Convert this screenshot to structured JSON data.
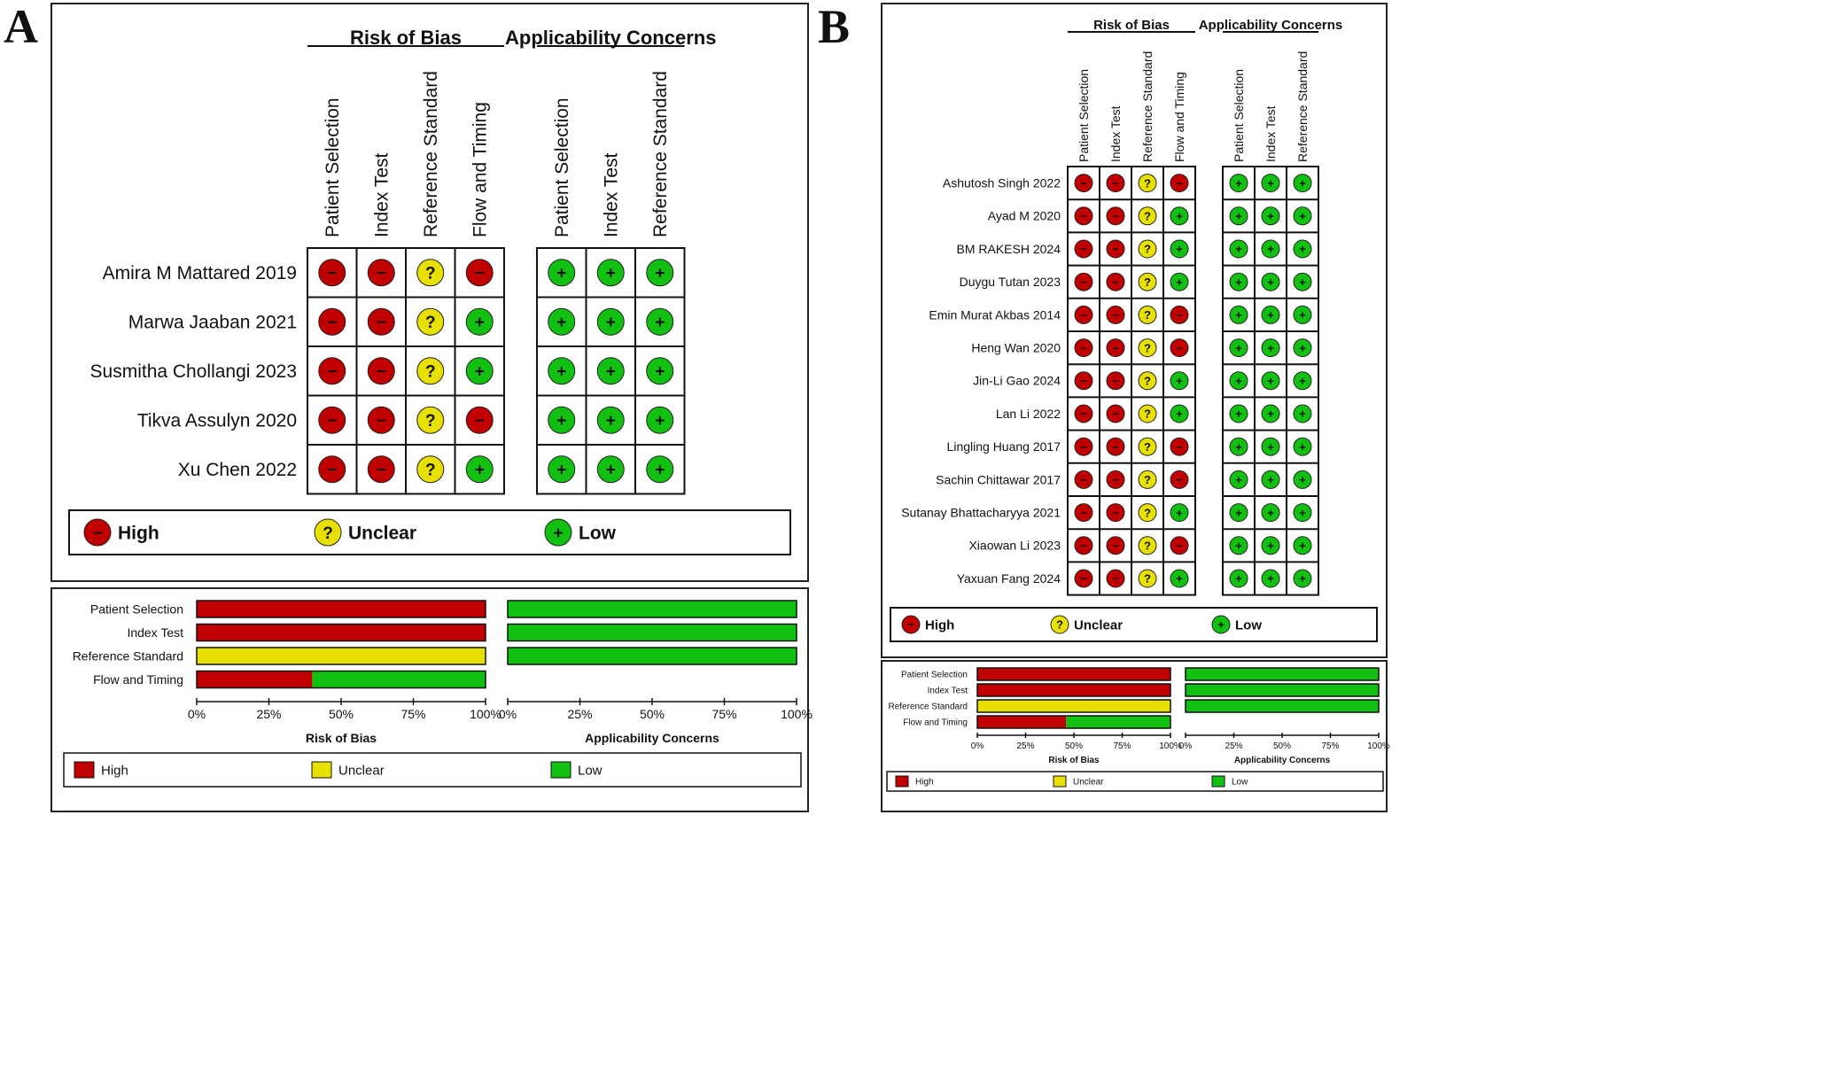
{
  "panel_labels": [
    "A",
    "B"
  ],
  "symbols": {
    "high": "−",
    "unclear": "?",
    "low": "+"
  },
  "colors": {
    "high": "#c00000",
    "unclear": "#e8e000",
    "low": "#12c012",
    "frame": "#222222"
  },
  "chart_data": [
    {
      "type": "table",
      "panel": "A",
      "group_titles": [
        "Risk of Bias",
        "Applicability Concerns"
      ],
      "rob_domains": [
        "Patient Selection",
        "Index Test",
        "Reference Standard",
        "Flow and Timing"
      ],
      "app_domains": [
        "Patient Selection",
        "Index Test",
        "Reference Standard"
      ],
      "studies": [
        {
          "name": "Amira M Mattared 2019",
          "rob": [
            "high",
            "high",
            "unclear",
            "high"
          ],
          "app": [
            "low",
            "low",
            "low"
          ]
        },
        {
          "name": "Marwa Jaaban 2021",
          "rob": [
            "high",
            "high",
            "unclear",
            "low"
          ],
          "app": [
            "low",
            "low",
            "low"
          ]
        },
        {
          "name": "Susmitha Chollangi 2023",
          "rob": [
            "high",
            "high",
            "unclear",
            "low"
          ],
          "app": [
            "low",
            "low",
            "low"
          ]
        },
        {
          "name": "Tikva Assulyn 2020",
          "rob": [
            "high",
            "high",
            "unclear",
            "high"
          ],
          "app": [
            "low",
            "low",
            "low"
          ]
        },
        {
          "name": "Xu Chen 2022",
          "rob": [
            "high",
            "high",
            "unclear",
            "low"
          ],
          "app": [
            "low",
            "low",
            "low"
          ]
        }
      ],
      "legend": [
        "High",
        "Unclear",
        "Low"
      ]
    },
    {
      "type": "bar",
      "panel": "A",
      "stacked": true,
      "orientation": "horizontal",
      "categories": [
        "Patient Selection",
        "Index Test",
        "Reference Standard",
        "Flow and Timing"
      ],
      "rob_series": [
        {
          "name": "High",
          "values": [
            100,
            100,
            0,
            40
          ]
        },
        {
          "name": "Unclear",
          "values": [
            0,
            0,
            100,
            0
          ]
        },
        {
          "name": "Low",
          "values": [
            0,
            0,
            0,
            60
          ]
        }
      ],
      "app_series": [
        {
          "name": "High",
          "values": [
            0,
            0,
            0
          ]
        },
        {
          "name": "Unclear",
          "values": [
            0,
            0,
            0
          ]
        },
        {
          "name": "Low",
          "values": [
            100,
            100,
            100
          ]
        }
      ],
      "xticks": [
        "0%",
        "25%",
        "50%",
        "75%",
        "100%"
      ],
      "xlim": [
        0,
        100
      ],
      "xlabels": [
        "Risk of Bias",
        "Applicability Concerns"
      ],
      "legend": [
        "High",
        "Unclear",
        "Low"
      ]
    },
    {
      "type": "table",
      "panel": "B",
      "group_titles": [
        "Risk of Bias",
        "Applicability Concerns"
      ],
      "rob_domains": [
        "Patient Selection",
        "Index Test",
        "Reference Standard",
        "Flow and Timing"
      ],
      "app_domains": [
        "Patient Selection",
        "Index Test",
        "Reference Standard"
      ],
      "studies": [
        {
          "name": "Ashutosh Singh 2022",
          "rob": [
            "high",
            "high",
            "unclear",
            "high"
          ],
          "app": [
            "low",
            "low",
            "low"
          ]
        },
        {
          "name": "Ayad M 2020",
          "rob": [
            "high",
            "high",
            "unclear",
            "low"
          ],
          "app": [
            "low",
            "low",
            "low"
          ]
        },
        {
          "name": "BM RAKESH 2024",
          "rob": [
            "high",
            "high",
            "unclear",
            "low"
          ],
          "app": [
            "low",
            "low",
            "low"
          ]
        },
        {
          "name": "Duygu Tutan 2023",
          "rob": [
            "high",
            "high",
            "unclear",
            "low"
          ],
          "app": [
            "low",
            "low",
            "low"
          ]
        },
        {
          "name": "Emin Murat Akbas 2014",
          "rob": [
            "high",
            "high",
            "unclear",
            "high"
          ],
          "app": [
            "low",
            "low",
            "low"
          ]
        },
        {
          "name": "Heng Wan 2020",
          "rob": [
            "high",
            "high",
            "unclear",
            "high"
          ],
          "app": [
            "low",
            "low",
            "low"
          ]
        },
        {
          "name": "Jin-Li Gao 2024",
          "rob": [
            "high",
            "high",
            "unclear",
            "low"
          ],
          "app": [
            "low",
            "low",
            "low"
          ]
        },
        {
          "name": "Lan Li 2022",
          "rob": [
            "high",
            "high",
            "unclear",
            "low"
          ],
          "app": [
            "low",
            "low",
            "low"
          ]
        },
        {
          "name": "Lingling Huang 2017",
          "rob": [
            "high",
            "high",
            "unclear",
            "high"
          ],
          "app": [
            "low",
            "low",
            "low"
          ]
        },
        {
          "name": "Sachin Chittawar 2017",
          "rob": [
            "high",
            "high",
            "unclear",
            "high"
          ],
          "app": [
            "low",
            "low",
            "low"
          ]
        },
        {
          "name": "Sutanay Bhattacharyya 2021",
          "rob": [
            "high",
            "high",
            "unclear",
            "low"
          ],
          "app": [
            "low",
            "low",
            "low"
          ]
        },
        {
          "name": "Xiaowan Li 2023",
          "rob": [
            "high",
            "high",
            "unclear",
            "high"
          ],
          "app": [
            "low",
            "low",
            "low"
          ]
        },
        {
          "name": "Yaxuan  Fang 2024",
          "rob": [
            "high",
            "high",
            "unclear",
            "low"
          ],
          "app": [
            "low",
            "low",
            "low"
          ]
        }
      ],
      "legend": [
        "High",
        "Unclear",
        "Low"
      ]
    },
    {
      "type": "bar",
      "panel": "B",
      "stacked": true,
      "orientation": "horizontal",
      "categories": [
        "Patient Selection",
        "Index Test",
        "Reference Standard",
        "Flow and Timing"
      ],
      "rob_series": [
        {
          "name": "High",
          "values": [
            100,
            100,
            0,
            46
          ]
        },
        {
          "name": "Unclear",
          "values": [
            0,
            0,
            100,
            0
          ]
        },
        {
          "name": "Low",
          "values": [
            0,
            0,
            0,
            54
          ]
        }
      ],
      "app_series": [
        {
          "name": "High",
          "values": [
            0,
            0,
            0
          ]
        },
        {
          "name": "Unclear",
          "values": [
            0,
            0,
            0
          ]
        },
        {
          "name": "Low",
          "values": [
            100,
            100,
            100
          ]
        }
      ],
      "xticks": [
        "0%",
        "25%",
        "50%",
        "75%",
        "100%"
      ],
      "xlim": [
        0,
        100
      ],
      "xlabels": [
        "Risk of Bias",
        "Applicability Concerns"
      ],
      "legend": [
        "High",
        "Unclear",
        "Low"
      ]
    }
  ]
}
